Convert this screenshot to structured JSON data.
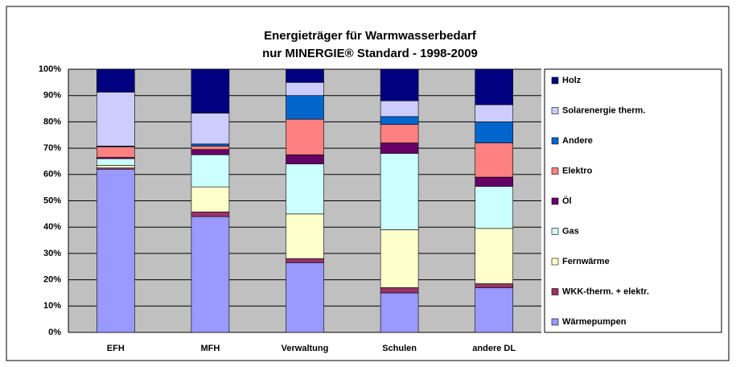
{
  "chart_data": {
    "type": "stacked_bar",
    "title": [
      "Energieträger für Warmwasserbedarf",
      "nur MINERGIE® Standard - 1998-2009"
    ],
    "categories": [
      "EFH",
      "MFH",
      "Verwaltung",
      "Schulen",
      "andere DL"
    ],
    "series": [
      {
        "name": "Wärmepumpen",
        "color": "#9999ff",
        "values": [
          62,
          44,
          26.5,
          15,
          17
        ]
      },
      {
        "name": "WKK-therm. + elektr.",
        "color": "#993366",
        "values": [
          0.5,
          1.8,
          1.5,
          2,
          1.5
        ]
      },
      {
        "name": "Fernwärme",
        "color": "#ffffcc",
        "values": [
          1,
          9.5,
          17,
          22,
          21
        ]
      },
      {
        "name": "Gas",
        "color": "#ccffff",
        "values": [
          2.5,
          12.2,
          19,
          29,
          16
        ]
      },
      {
        "name": "Öl",
        "color": "#660066",
        "values": [
          0.5,
          2,
          3.5,
          4,
          3.5
        ]
      },
      {
        "name": "Elektro",
        "color": "#ff8080",
        "values": [
          4,
          1.3,
          13.5,
          7,
          13
        ]
      },
      {
        "name": "Andere",
        "color": "#0066cc",
        "values": [
          0.3,
          0.8,
          9,
          3,
          8
        ]
      },
      {
        "name": "Solarenergie therm.",
        "color": "#ccccff",
        "values": [
          20.5,
          11.7,
          5,
          6,
          6.5
        ]
      },
      {
        "name": "Holz",
        "color": "#000080",
        "values": [
          8.7,
          16.7,
          5,
          12,
          13.5
        ]
      }
    ],
    "ylim": [
      0,
      100
    ],
    "yticks": [
      {
        "value": 0,
        "label": "0%"
      },
      {
        "value": 10,
        "label": "10%"
      },
      {
        "value": 20,
        "label": "20%"
      },
      {
        "value": 30,
        "label": "30%"
      },
      {
        "value": 40,
        "label": "40%"
      },
      {
        "value": 50,
        "label": "50%"
      },
      {
        "value": 60,
        "label": "60%"
      },
      {
        "value": 70,
        "label": "70%"
      },
      {
        "value": 80,
        "label": "80%"
      },
      {
        "value": 90,
        "label": "90%"
      },
      {
        "value": 100,
        "label": "100%"
      }
    ],
    "grid": true,
    "legend": "right"
  }
}
